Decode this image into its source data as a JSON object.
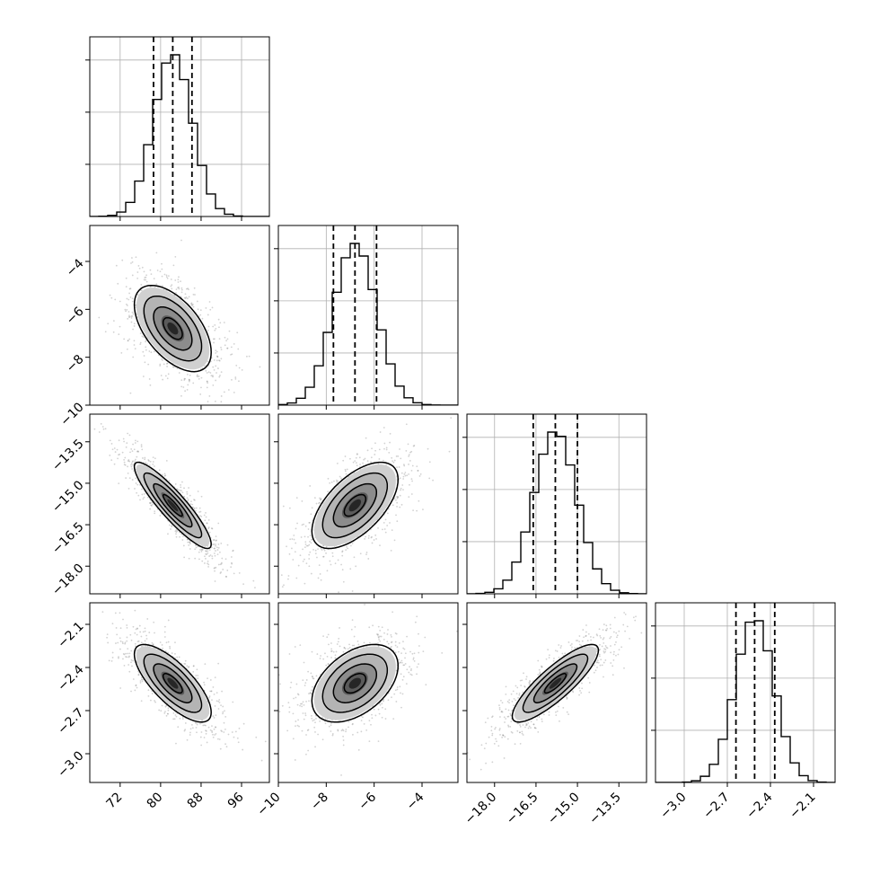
{
  "chart_data": {
    "type": "corner",
    "parameters": [
      {
        "ticks": [
          "72",
          "80",
          "88",
          "96"
        ],
        "tick_values": [
          72,
          80,
          88,
          96
        ],
        "range": [
          66.0,
          101.5
        ],
        "quantiles": [
          78.6,
          82.4,
          86.2
        ],
        "mean": 82.4,
        "sd": 3.8
      },
      {
        "ticks": [
          "-10",
          "-8",
          "-6",
          "-4"
        ],
        "tick_values": [
          -10,
          -8,
          -6,
          -4
        ],
        "range": [
          -10.0,
          -2.5
        ],
        "quantiles": [
          -7.7,
          -6.8,
          -5.9
        ],
        "mean": -6.8,
        "sd": 0.9
      },
      {
        "ticks": [
          "-18.0",
          "-16.5",
          "-15.0",
          "-13.5"
        ],
        "tick_values": [
          -18.0,
          -16.5,
          -15.0,
          -13.5
        ],
        "range": [
          -19.0,
          -12.5
        ],
        "quantiles": [
          -16.6,
          -15.8,
          -15.0
        ],
        "mean": -15.8,
        "sd": 0.78
      },
      {
        "ticks": [
          "-3.0",
          "-2.7",
          "-2.4",
          "-2.1"
        ],
        "tick_values": [
          -3.0,
          -2.7,
          -2.4,
          -2.1
        ],
        "range": [
          -3.2,
          -1.95
        ],
        "quantiles": [
          -2.64,
          -2.51,
          -2.37
        ],
        "mean": -2.51,
        "sd": 0.135
      }
    ],
    "correlations": [
      [
        1,
        -0.55,
        -0.9,
        -0.75
      ],
      [
        -0.55,
        1,
        0.6,
        0.45
      ],
      [
        -0.9,
        0.6,
        1,
        0.85
      ],
      [
        -0.75,
        0.45,
        0.85,
        1
      ]
    ],
    "histogram_style": "step",
    "quantile_lines": "dashed",
    "grid": true,
    "contour_levels": 4,
    "colors": {
      "line": "#000000",
      "grid": "#b0b0b0",
      "points": "#7f7f7f",
      "density_dark": "#1a1a1a"
    }
  }
}
